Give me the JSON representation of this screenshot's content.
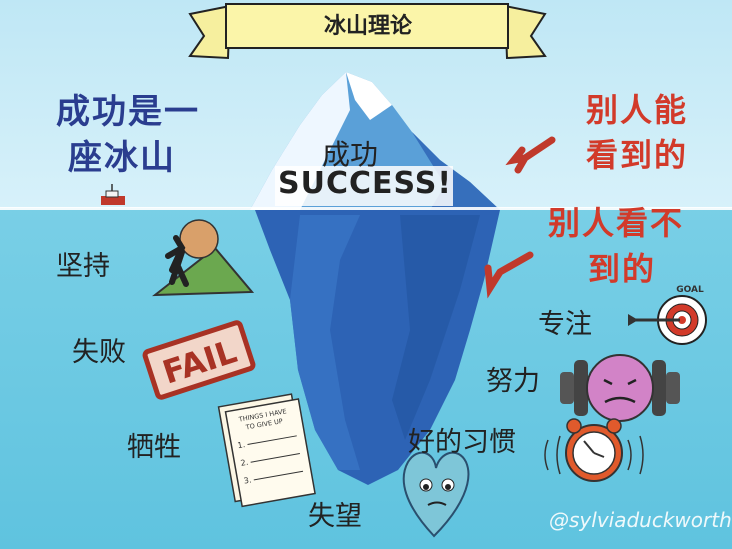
{
  "banner": {
    "title": "冰山理论"
  },
  "left_title": {
    "line1": "成功是一",
    "line2": "座冰山"
  },
  "right_top": {
    "line1": "别人能",
    "line2": "看到的"
  },
  "right_bottom": {
    "line1": "别人看不",
    "line2": "到的"
  },
  "tip": {
    "line1": "成功",
    "line2": "SUCCESS!"
  },
  "labels": {
    "persistence": "坚持",
    "failure": "失败",
    "sacrifice": "牺牲",
    "disappointment": "失望",
    "focus": "专注",
    "effort": "努力",
    "good_habits": "好的习惯"
  },
  "sign_fail": "FAIL",
  "note_paper": {
    "heading": "THINGS I HAVE TO GIVE UP",
    "items": [
      "1.",
      "2.",
      "3."
    ]
  },
  "goal_text": "GOAL",
  "watermark": "@sylviaduckworth",
  "icons": [
    "ship-icon",
    "sisyphus-boulder-icon",
    "fail-sign-icon",
    "list-paper-icon",
    "heart-icon",
    "target-icon",
    "dumbbell-icon",
    "alarm-clock-icon",
    "arrow-icon"
  ],
  "colors": {
    "sky": "#bfe7f5",
    "sea": "#6ac8e2",
    "iceberg_under": "#2d63b5",
    "red_text": "#d23a2a",
    "blue_text": "#2a3d8f"
  }
}
